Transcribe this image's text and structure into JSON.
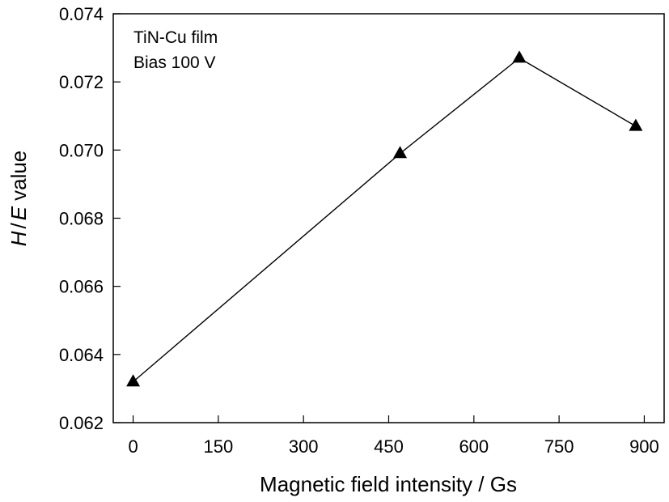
{
  "chart_data": {
    "type": "line",
    "title": "",
    "xlabel": "Magnetic field intensity / Gs",
    "ylabel": {
      "italic_h": "H",
      "sep": "/",
      "italic_e": "E",
      "rest": "value"
    },
    "xlim": [
      -35,
      935
    ],
    "ylim": [
      0.062,
      0.074
    ],
    "x_ticks": [
      "0",
      "150",
      "300",
      "450",
      "600",
      "750",
      "900"
    ],
    "y_ticks": [
      "0.062",
      "0.064",
      "0.066",
      "0.068",
      "0.070",
      "0.072",
      "0.074"
    ],
    "grid": false,
    "marker": "filled-triangle",
    "series": [
      {
        "x": [
          0,
          470,
          680,
          885
        ],
        "y": [
          0.0632,
          0.0699,
          0.0727,
          0.0707
        ]
      }
    ],
    "annotations": [
      "TiN-Cu film",
      "Bias 100 V"
    ]
  }
}
